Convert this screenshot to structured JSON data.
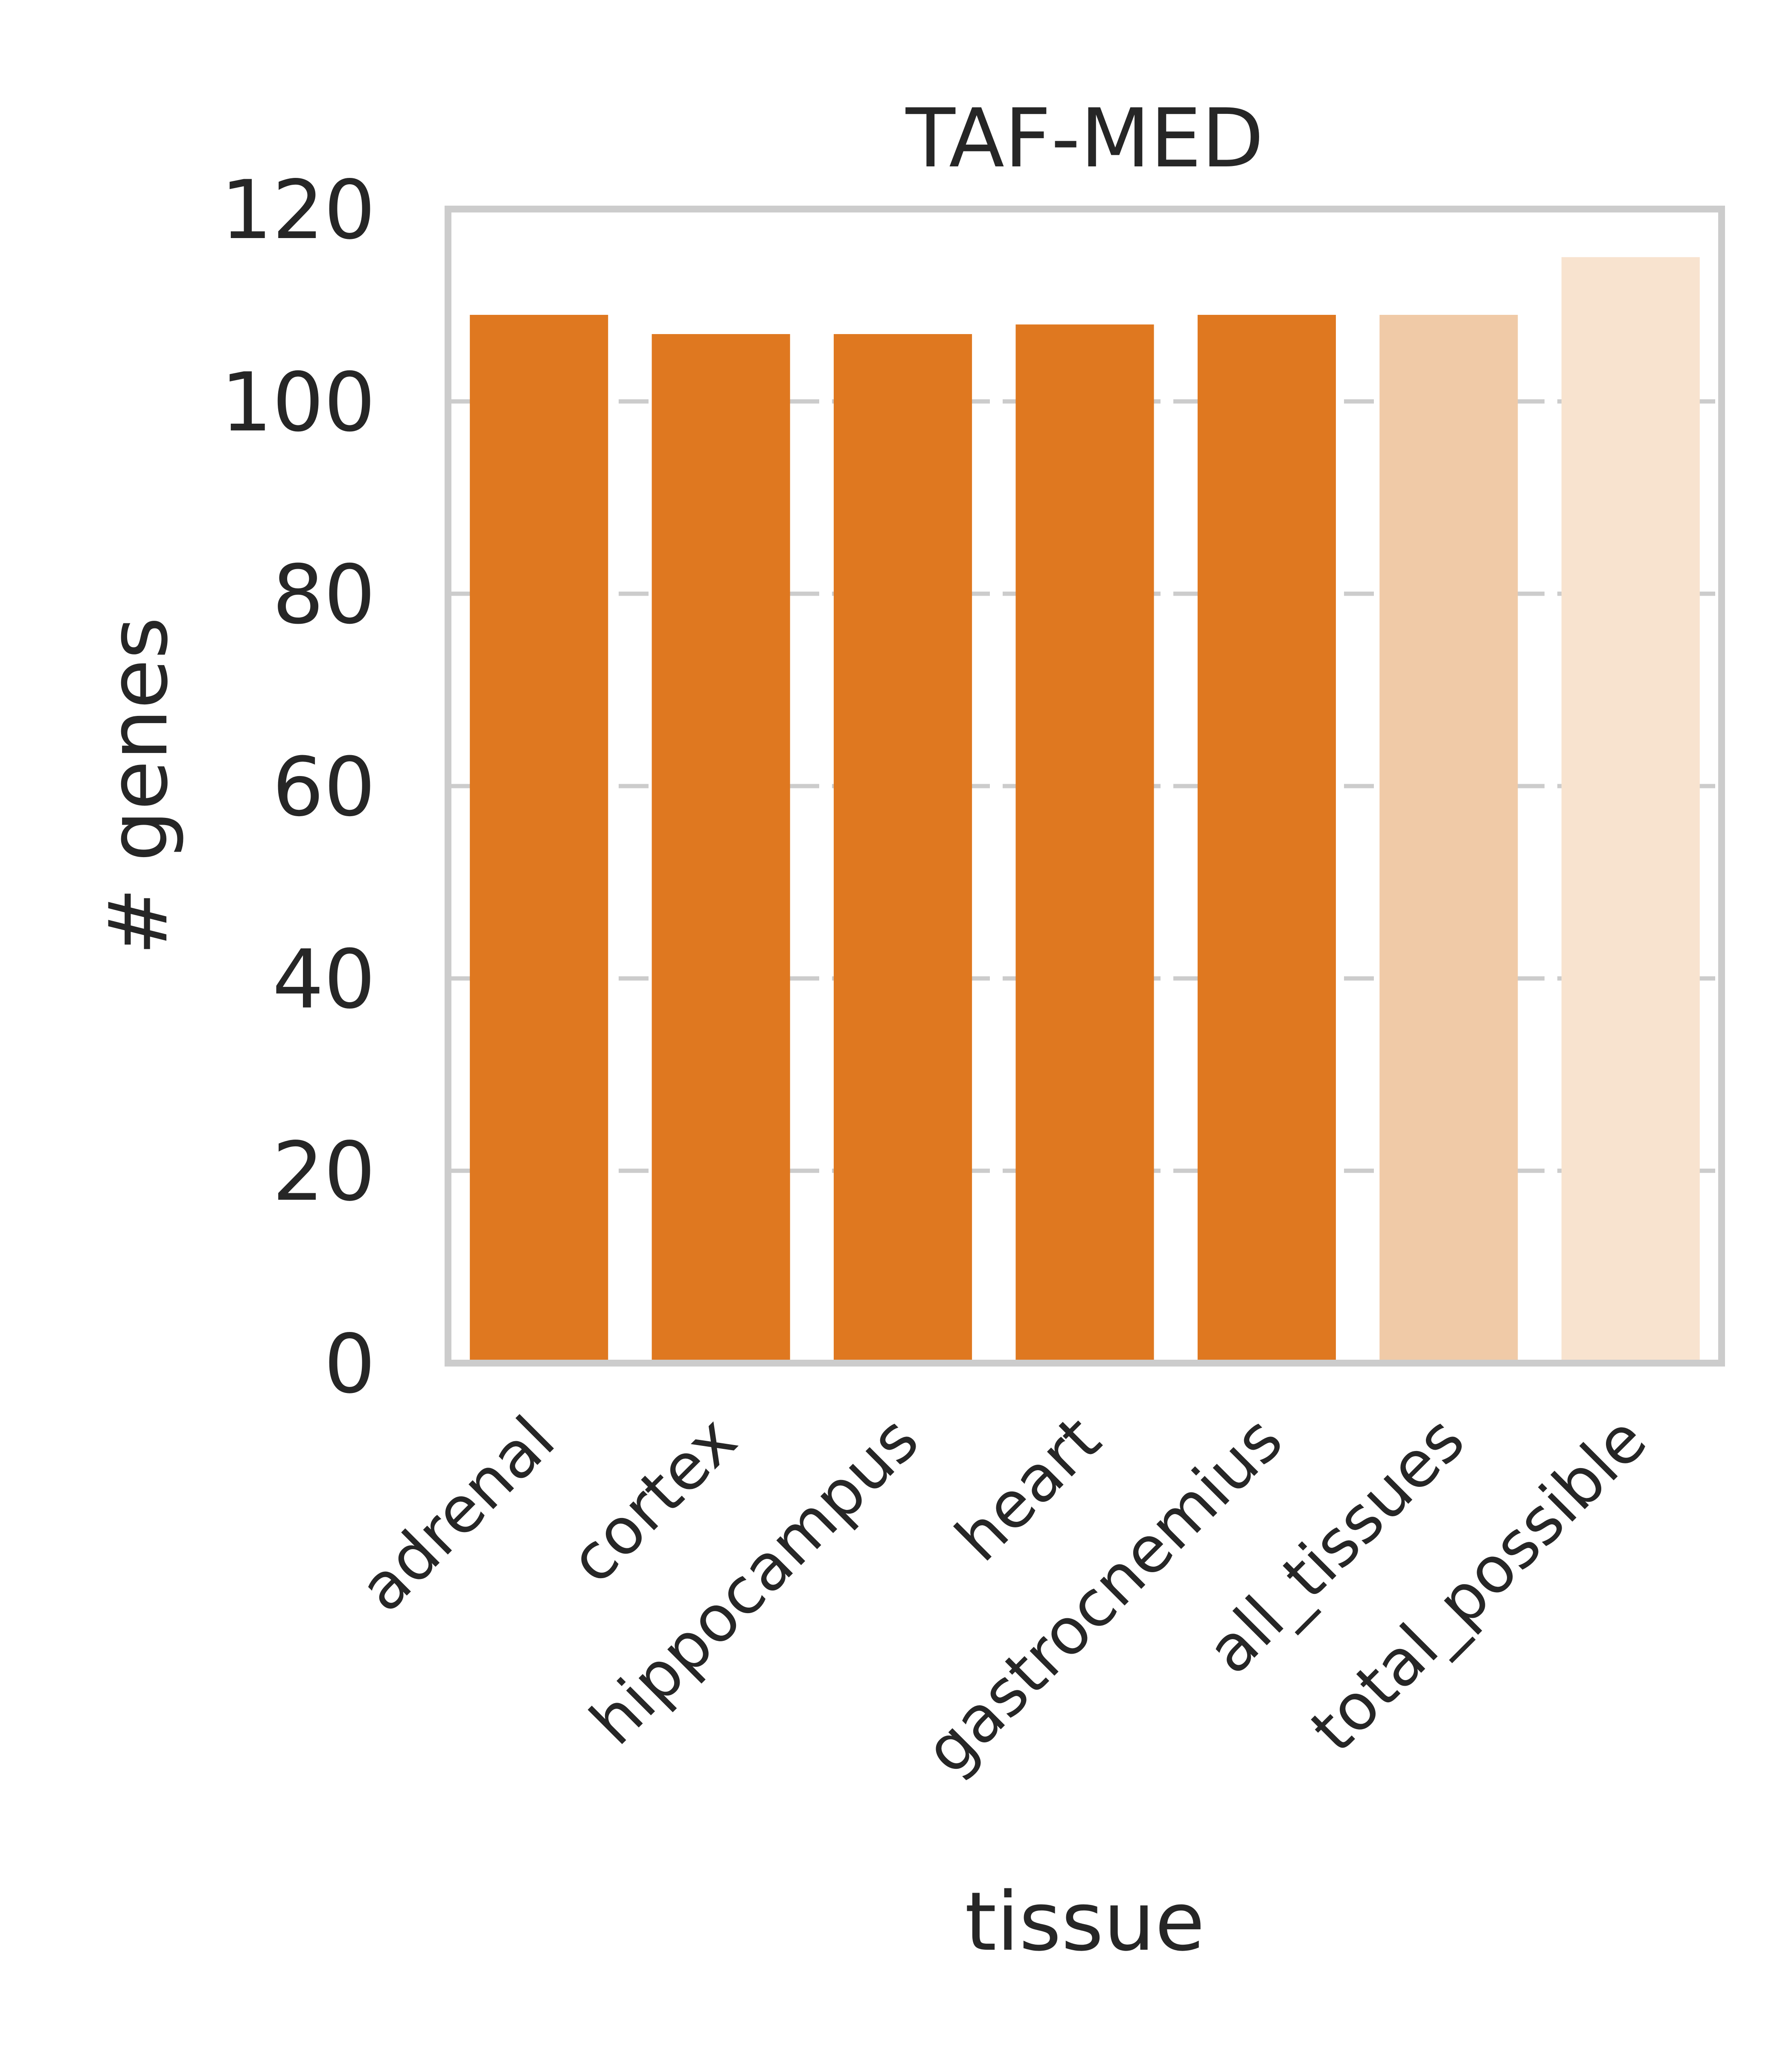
{
  "chart_data": {
    "type": "bar",
    "title": "TAF-MED",
    "xlabel": "tissue",
    "ylabel": "# genes",
    "categories": [
      "adrenal",
      "cortex",
      "hippocampus",
      "heart",
      "gastrocnemius",
      "all_tissues",
      "total_possible"
    ],
    "values": [
      109,
      107,
      107,
      108,
      109,
      109,
      115
    ],
    "bar_colors": [
      "#df7820",
      "#df7820",
      "#df7820",
      "#df7820",
      "#df7820",
      "#f0caa7",
      "#f8e3cf"
    ],
    "ylim": [
      0,
      120
    ],
    "yticks": [
      0,
      20,
      40,
      60,
      80,
      100,
      120
    ],
    "grid": true
  }
}
